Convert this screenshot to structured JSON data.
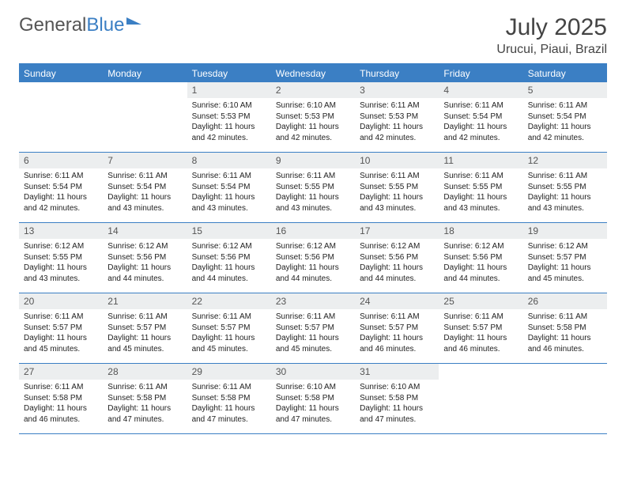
{
  "logo": {
    "text1": "General",
    "text2": "Blue"
  },
  "title": "July 2025",
  "location": "Urucui, Piaui, Brazil",
  "colors": {
    "accent": "#3b7fc4",
    "daynum_bg": "#eceeef",
    "text": "#222222"
  },
  "weekdays": [
    "Sunday",
    "Monday",
    "Tuesday",
    "Wednesday",
    "Thursday",
    "Friday",
    "Saturday"
  ],
  "weeks": [
    [
      {
        "n": "",
        "sr": "",
        "ss": "",
        "dl": ""
      },
      {
        "n": "",
        "sr": "",
        "ss": "",
        "dl": ""
      },
      {
        "n": "1",
        "sr": "Sunrise: 6:10 AM",
        "ss": "Sunset: 5:53 PM",
        "dl": "Daylight: 11 hours and 42 minutes."
      },
      {
        "n": "2",
        "sr": "Sunrise: 6:10 AM",
        "ss": "Sunset: 5:53 PM",
        "dl": "Daylight: 11 hours and 42 minutes."
      },
      {
        "n": "3",
        "sr": "Sunrise: 6:11 AM",
        "ss": "Sunset: 5:53 PM",
        "dl": "Daylight: 11 hours and 42 minutes."
      },
      {
        "n": "4",
        "sr": "Sunrise: 6:11 AM",
        "ss": "Sunset: 5:54 PM",
        "dl": "Daylight: 11 hours and 42 minutes."
      },
      {
        "n": "5",
        "sr": "Sunrise: 6:11 AM",
        "ss": "Sunset: 5:54 PM",
        "dl": "Daylight: 11 hours and 42 minutes."
      }
    ],
    [
      {
        "n": "6",
        "sr": "Sunrise: 6:11 AM",
        "ss": "Sunset: 5:54 PM",
        "dl": "Daylight: 11 hours and 42 minutes."
      },
      {
        "n": "7",
        "sr": "Sunrise: 6:11 AM",
        "ss": "Sunset: 5:54 PM",
        "dl": "Daylight: 11 hours and 43 minutes."
      },
      {
        "n": "8",
        "sr": "Sunrise: 6:11 AM",
        "ss": "Sunset: 5:54 PM",
        "dl": "Daylight: 11 hours and 43 minutes."
      },
      {
        "n": "9",
        "sr": "Sunrise: 6:11 AM",
        "ss": "Sunset: 5:55 PM",
        "dl": "Daylight: 11 hours and 43 minutes."
      },
      {
        "n": "10",
        "sr": "Sunrise: 6:11 AM",
        "ss": "Sunset: 5:55 PM",
        "dl": "Daylight: 11 hours and 43 minutes."
      },
      {
        "n": "11",
        "sr": "Sunrise: 6:11 AM",
        "ss": "Sunset: 5:55 PM",
        "dl": "Daylight: 11 hours and 43 minutes."
      },
      {
        "n": "12",
        "sr": "Sunrise: 6:11 AM",
        "ss": "Sunset: 5:55 PM",
        "dl": "Daylight: 11 hours and 43 minutes."
      }
    ],
    [
      {
        "n": "13",
        "sr": "Sunrise: 6:12 AM",
        "ss": "Sunset: 5:55 PM",
        "dl": "Daylight: 11 hours and 43 minutes."
      },
      {
        "n": "14",
        "sr": "Sunrise: 6:12 AM",
        "ss": "Sunset: 5:56 PM",
        "dl": "Daylight: 11 hours and 44 minutes."
      },
      {
        "n": "15",
        "sr": "Sunrise: 6:12 AM",
        "ss": "Sunset: 5:56 PM",
        "dl": "Daylight: 11 hours and 44 minutes."
      },
      {
        "n": "16",
        "sr": "Sunrise: 6:12 AM",
        "ss": "Sunset: 5:56 PM",
        "dl": "Daylight: 11 hours and 44 minutes."
      },
      {
        "n": "17",
        "sr": "Sunrise: 6:12 AM",
        "ss": "Sunset: 5:56 PM",
        "dl": "Daylight: 11 hours and 44 minutes."
      },
      {
        "n": "18",
        "sr": "Sunrise: 6:12 AM",
        "ss": "Sunset: 5:56 PM",
        "dl": "Daylight: 11 hours and 44 minutes."
      },
      {
        "n": "19",
        "sr": "Sunrise: 6:12 AM",
        "ss": "Sunset: 5:57 PM",
        "dl": "Daylight: 11 hours and 45 minutes."
      }
    ],
    [
      {
        "n": "20",
        "sr": "Sunrise: 6:11 AM",
        "ss": "Sunset: 5:57 PM",
        "dl": "Daylight: 11 hours and 45 minutes."
      },
      {
        "n": "21",
        "sr": "Sunrise: 6:11 AM",
        "ss": "Sunset: 5:57 PM",
        "dl": "Daylight: 11 hours and 45 minutes."
      },
      {
        "n": "22",
        "sr": "Sunrise: 6:11 AM",
        "ss": "Sunset: 5:57 PM",
        "dl": "Daylight: 11 hours and 45 minutes."
      },
      {
        "n": "23",
        "sr": "Sunrise: 6:11 AM",
        "ss": "Sunset: 5:57 PM",
        "dl": "Daylight: 11 hours and 45 minutes."
      },
      {
        "n": "24",
        "sr": "Sunrise: 6:11 AM",
        "ss": "Sunset: 5:57 PM",
        "dl": "Daylight: 11 hours and 46 minutes."
      },
      {
        "n": "25",
        "sr": "Sunrise: 6:11 AM",
        "ss": "Sunset: 5:57 PM",
        "dl": "Daylight: 11 hours and 46 minutes."
      },
      {
        "n": "26",
        "sr": "Sunrise: 6:11 AM",
        "ss": "Sunset: 5:58 PM",
        "dl": "Daylight: 11 hours and 46 minutes."
      }
    ],
    [
      {
        "n": "27",
        "sr": "Sunrise: 6:11 AM",
        "ss": "Sunset: 5:58 PM",
        "dl": "Daylight: 11 hours and 46 minutes."
      },
      {
        "n": "28",
        "sr": "Sunrise: 6:11 AM",
        "ss": "Sunset: 5:58 PM",
        "dl": "Daylight: 11 hours and 47 minutes."
      },
      {
        "n": "29",
        "sr": "Sunrise: 6:11 AM",
        "ss": "Sunset: 5:58 PM",
        "dl": "Daylight: 11 hours and 47 minutes."
      },
      {
        "n": "30",
        "sr": "Sunrise: 6:10 AM",
        "ss": "Sunset: 5:58 PM",
        "dl": "Daylight: 11 hours and 47 minutes."
      },
      {
        "n": "31",
        "sr": "Sunrise: 6:10 AM",
        "ss": "Sunset: 5:58 PM",
        "dl": "Daylight: 11 hours and 47 minutes."
      },
      {
        "n": "",
        "sr": "",
        "ss": "",
        "dl": ""
      },
      {
        "n": "",
        "sr": "",
        "ss": "",
        "dl": ""
      }
    ]
  ]
}
